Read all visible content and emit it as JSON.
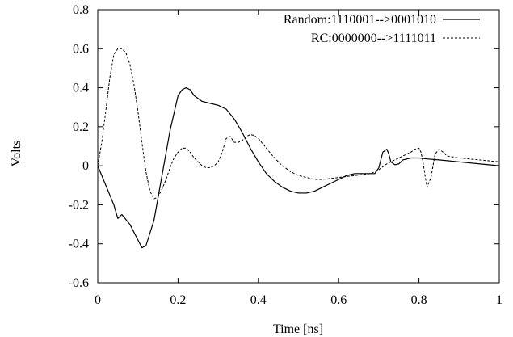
{
  "chart_data": {
    "type": "line",
    "title": "",
    "xlabel": "Time [ns]",
    "ylabel": "Volts",
    "xlim": [
      0,
      1
    ],
    "ylim": [
      -0.6,
      0.8
    ],
    "xticks": [
      0,
      0.2,
      0.4,
      0.6,
      0.8,
      1
    ],
    "xtick_labels": [
      "0",
      "0.2",
      "0.4",
      "0.6",
      "0.8",
      "1"
    ],
    "yticks": [
      -0.6,
      -0.4,
      -0.2,
      0,
      0.2,
      0.4,
      0.6,
      0.8
    ],
    "ytick_labels": [
      "-0.6",
      "-0.4",
      "-0.2",
      "0",
      "0.2",
      "0.4",
      "0.6",
      "0.8"
    ],
    "grid": false,
    "legend_position": "top-right",
    "series": [
      {
        "name": "Random:1110001-->0001010",
        "style": "solid",
        "color": "#000000",
        "x": [
          0,
          0.02,
          0.04,
          0.05,
          0.06,
          0.08,
          0.1,
          0.11,
          0.12,
          0.14,
          0.16,
          0.18,
          0.2,
          0.21,
          0.22,
          0.23,
          0.24,
          0.26,
          0.28,
          0.3,
          0.32,
          0.34,
          0.36,
          0.38,
          0.4,
          0.42,
          0.44,
          0.46,
          0.48,
          0.5,
          0.52,
          0.54,
          0.56,
          0.58,
          0.6,
          0.62,
          0.64,
          0.66,
          0.68,
          0.69,
          0.7,
          0.71,
          0.72,
          0.725,
          0.73,
          0.74,
          0.75,
          0.76,
          0.78,
          0.8,
          0.82,
          0.85,
          0.9,
          0.95,
          1.0
        ],
        "y": [
          0,
          -0.1,
          -0.2,
          -0.27,
          -0.25,
          -0.3,
          -0.38,
          -0.42,
          -0.41,
          -0.28,
          -0.05,
          0.18,
          0.36,
          0.39,
          0.4,
          0.39,
          0.36,
          0.33,
          0.32,
          0.31,
          0.29,
          0.24,
          0.17,
          0.09,
          0.02,
          -0.04,
          -0.08,
          -0.11,
          -0.13,
          -0.14,
          -0.14,
          -0.13,
          -0.11,
          -0.09,
          -0.07,
          -0.05,
          -0.04,
          -0.04,
          -0.04,
          -0.04,
          -0.01,
          0.07,
          0.085,
          0.06,
          0.02,
          0.005,
          0.01,
          0.03,
          0.04,
          0.04,
          0.035,
          0.03,
          0.02,
          0.01,
          0.0
        ]
      },
      {
        "name": "RC:0000000-->1111011",
        "style": "dashed",
        "color": "#000000",
        "x": [
          0,
          0.01,
          0.02,
          0.03,
          0.04,
          0.05,
          0.06,
          0.07,
          0.08,
          0.09,
          0.1,
          0.11,
          0.12,
          0.13,
          0.14,
          0.15,
          0.16,
          0.17,
          0.18,
          0.19,
          0.2,
          0.21,
          0.22,
          0.23,
          0.24,
          0.25,
          0.26,
          0.27,
          0.28,
          0.29,
          0.3,
          0.31,
          0.32,
          0.33,
          0.34,
          0.35,
          0.36,
          0.37,
          0.38,
          0.39,
          0.4,
          0.42,
          0.44,
          0.46,
          0.48,
          0.5,
          0.52,
          0.54,
          0.56,
          0.58,
          0.6,
          0.62,
          0.64,
          0.66,
          0.68,
          0.7,
          0.72,
          0.74,
          0.76,
          0.78,
          0.79,
          0.8,
          0.805,
          0.81,
          0.815,
          0.82,
          0.83,
          0.84,
          0.85,
          0.86,
          0.87,
          0.9,
          0.95,
          1.0
        ],
        "y": [
          0,
          0.12,
          0.28,
          0.45,
          0.57,
          0.6,
          0.6,
          0.58,
          0.52,
          0.42,
          0.28,
          0.12,
          -0.03,
          -0.13,
          -0.17,
          -0.16,
          -0.12,
          -0.07,
          -0.01,
          0.04,
          0.07,
          0.09,
          0.09,
          0.07,
          0.04,
          0.02,
          0.0,
          -0.01,
          -0.01,
          0.0,
          0.02,
          0.07,
          0.14,
          0.15,
          0.12,
          0.12,
          0.13,
          0.15,
          0.16,
          0.155,
          0.14,
          0.09,
          0.04,
          0.0,
          -0.03,
          -0.05,
          -0.06,
          -0.07,
          -0.07,
          -0.065,
          -0.06,
          -0.055,
          -0.05,
          -0.045,
          -0.04,
          -0.02,
          0.01,
          0.03,
          0.05,
          0.07,
          0.085,
          0.09,
          0.07,
          0.02,
          -0.05,
          -0.11,
          -0.06,
          0.06,
          0.085,
          0.07,
          0.05,
          0.04,
          0.03,
          0.02
        ]
      }
    ]
  }
}
